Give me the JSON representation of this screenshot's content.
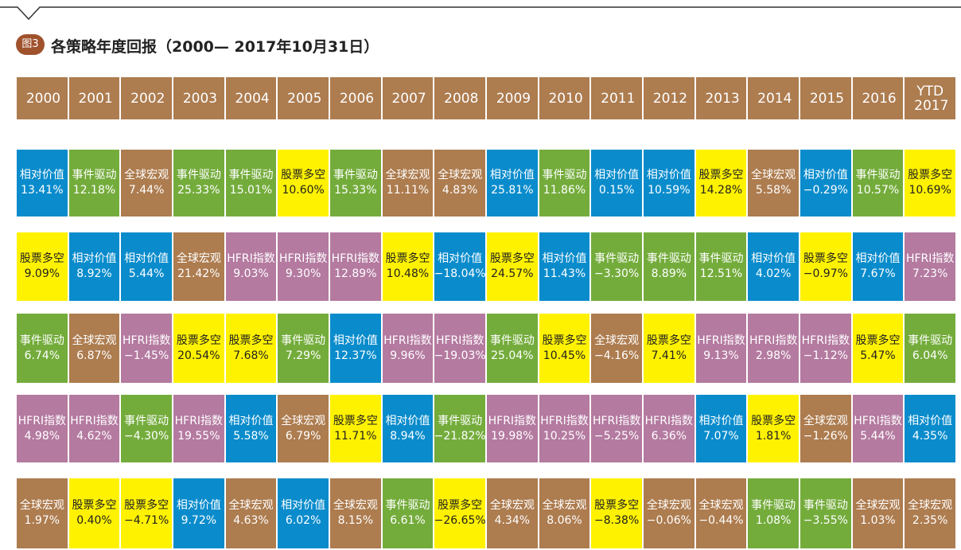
{
  "header": {
    "badge": "图3",
    "title": "各策略年度回报（2000— 2017年10月31日）"
  },
  "table": {
    "colors": {
      "相对价值": "#0a8ccc",
      "事件驱动": "#74ac3c",
      "全球宏观": "#ad7c4f",
      "股票多空": "#fff200",
      "HFRI指数": "#b47aa0"
    },
    "header_color": "#ad7c4f",
    "columns": [
      "2000",
      "2001",
      "2002",
      "2003",
      "2004",
      "2005",
      "2006",
      "2007",
      "2008",
      "2009",
      "2010",
      "2011",
      "2012",
      "2013",
      "2014",
      "2015",
      "2016",
      "YTD 2017"
    ],
    "rows": [
      [
        {
          "name": "相对价值",
          "value": "13.41%"
        },
        {
          "name": "事件驱动",
          "value": "12.18%"
        },
        {
          "name": "全球宏观",
          "value": "7.44%"
        },
        {
          "name": "事件驱动",
          "value": "25.33%"
        },
        {
          "name": "事件驱动",
          "value": "15.01%"
        },
        {
          "name": "股票多空",
          "value": "10.60%"
        },
        {
          "name": "事件驱动",
          "value": "15.33%"
        },
        {
          "name": "全球宏观",
          "value": "11.11%"
        },
        {
          "name": "全球宏观",
          "value": "4.83%"
        },
        {
          "name": "相对价值",
          "value": "25.81%"
        },
        {
          "name": "事件驱动",
          "value": "11.86%"
        },
        {
          "name": "相对价值",
          "value": "0.15%"
        },
        {
          "name": "相对价值",
          "value": "10.59%"
        },
        {
          "name": "股票多空",
          "value": "14.28%"
        },
        {
          "name": "全球宏观",
          "value": "5.58%"
        },
        {
          "name": "相对价值",
          "value": "−0.29%"
        },
        {
          "name": "事件驱动",
          "value": "10.57%"
        },
        {
          "name": "股票多空",
          "value": "10.69%"
        }
      ],
      [
        {
          "name": "股票多空",
          "value": "9.09%"
        },
        {
          "name": "相对价值",
          "value": "8.92%"
        },
        {
          "name": "相对价值",
          "value": "5.44%"
        },
        {
          "name": "全球宏观",
          "value": "21.42%"
        },
        {
          "name": "HFRI指数",
          "value": "9.03%"
        },
        {
          "name": "HFRI指数",
          "value": "9.30%"
        },
        {
          "name": "HFRI指数",
          "value": "12.89%"
        },
        {
          "name": "股票多空",
          "value": "10.48%"
        },
        {
          "name": "相对价值",
          "value": "−18.04%"
        },
        {
          "name": "股票多空",
          "value": "24.57%"
        },
        {
          "name": "相对价值",
          "value": "11.43%"
        },
        {
          "name": "事件驱动",
          "value": "−3.30%"
        },
        {
          "name": "事件驱动",
          "value": "8.89%"
        },
        {
          "name": "事件驱动",
          "value": "12.51%"
        },
        {
          "name": "相对价值",
          "value": "4.02%"
        },
        {
          "name": "股票多空",
          "value": "−0.97%"
        },
        {
          "name": "相对价值",
          "value": "7.67%"
        },
        {
          "name": "HFRI指数",
          "value": "7.23%"
        }
      ],
      [
        {
          "name": "事件驱动",
          "value": "6.74%"
        },
        {
          "name": "全球宏观",
          "value": "6.87%"
        },
        {
          "name": "HFRI指数",
          "value": "−1.45%"
        },
        {
          "name": "股票多空",
          "value": "20.54%"
        },
        {
          "name": "股票多空",
          "value": "7.68%"
        },
        {
          "name": "事件驱动",
          "value": "7.29%"
        },
        {
          "name": "相对价值",
          "value": "12.37%"
        },
        {
          "name": "HFRI指数",
          "value": "9.96%"
        },
        {
          "name": "HFRI指数",
          "value": "−19.03%"
        },
        {
          "name": "事件驱动",
          "value": "25.04%"
        },
        {
          "name": "股票多空",
          "value": "10.45%"
        },
        {
          "name": "全球宏观",
          "value": "−4.16%"
        },
        {
          "name": "股票多空",
          "value": "7.41%"
        },
        {
          "name": "HFRI指数",
          "value": "9.13%"
        },
        {
          "name": "HFRI指数",
          "value": "2.98%"
        },
        {
          "name": "HFRI指数",
          "value": "−1.12%"
        },
        {
          "name": "股票多空",
          "value": "5.47%"
        },
        {
          "name": "事件驱动",
          "value": "6.04%"
        }
      ],
      [
        {
          "name": "HFRI指数",
          "value": "4.98%"
        },
        {
          "name": "HFRI指数",
          "value": "4.62%"
        },
        {
          "name": "事件驱动",
          "value": "−4.30%"
        },
        {
          "name": "HFRI指数",
          "value": "19.55%"
        },
        {
          "name": "相对价值",
          "value": "5.58%"
        },
        {
          "name": "全球宏观",
          "value": "6.79%"
        },
        {
          "name": "股票多空",
          "value": "11.71%"
        },
        {
          "name": "相对价值",
          "value": "8.94%"
        },
        {
          "name": "事件驱动",
          "value": "−21.82%"
        },
        {
          "name": "HFRI指数",
          "value": "19.98%"
        },
        {
          "name": "HFRI指数",
          "value": "10.25%"
        },
        {
          "name": "HFRI指数",
          "value": "−5.25%"
        },
        {
          "name": "HFRI指数",
          "value": "6.36%"
        },
        {
          "name": "相对价值",
          "value": "7.07%"
        },
        {
          "name": "股票多空",
          "value": "1.81%"
        },
        {
          "name": "全球宏观",
          "value": "−1.26%"
        },
        {
          "name": "HFRI指数",
          "value": "5.44%"
        },
        {
          "name": "相对价值",
          "value": "4.35%"
        }
      ],
      [
        {
          "name": "全球宏观",
          "value": "1.97%"
        },
        {
          "name": "股票多空",
          "value": "0.40%"
        },
        {
          "name": "股票多空",
          "value": "−4.71%"
        },
        {
          "name": "相对价值",
          "value": "9.72%"
        },
        {
          "name": "全球宏观",
          "value": "4.63%"
        },
        {
          "name": "相对价值",
          "value": "6.02%"
        },
        {
          "name": "全球宏观",
          "value": "8.15%"
        },
        {
          "name": "事件驱动",
          "value": "6.61%"
        },
        {
          "name": "股票多空",
          "value": "−26.65%"
        },
        {
          "name": "全球宏观",
          "value": "4.34%"
        },
        {
          "name": "全球宏观",
          "value": "8.06%"
        },
        {
          "name": "股票多空",
          "value": "−8.38%"
        },
        {
          "name": "全球宏观",
          "value": "−0.06%"
        },
        {
          "name": "全球宏观",
          "value": "−0.44%"
        },
        {
          "name": "事件驱动",
          "value": "1.08%"
        },
        {
          "name": "事件驱动",
          "value": "−3.55%"
        },
        {
          "name": "全球宏观",
          "value": "1.03%"
        },
        {
          "name": "全球宏观",
          "value": "2.35%"
        }
      ]
    ]
  }
}
